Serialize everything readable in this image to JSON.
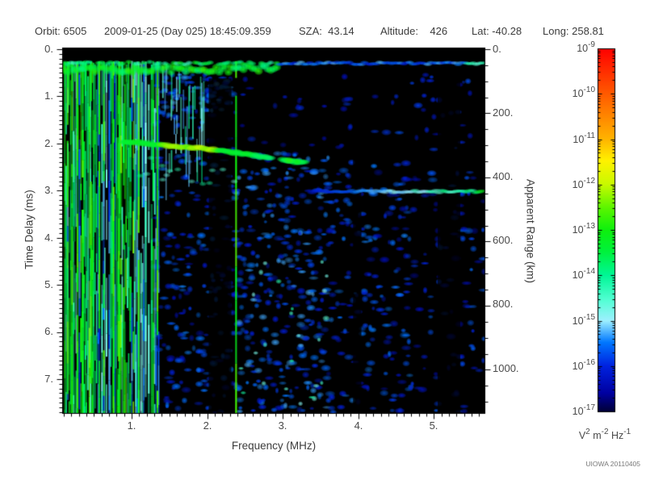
{
  "header": {
    "orbit": "Orbit: 6505",
    "datetime": "2009-01-25 (Day 025) 18:45:09.359",
    "sza": "SZA:  43.14",
    "altitude": "Altitude:    426",
    "lat": "Lat: -40.28",
    "long": "Long: 258.81"
  },
  "footer": {
    "credit": "UIOWA 20110405"
  },
  "chart_data": {
    "type": "heatmap",
    "xlabel": "Frequency (MHz)",
    "ylabel": "Time Delay (ms)",
    "y2label": "Apparent Range (km)",
    "xlim": [
      0.08,
      5.67
    ],
    "ylim": [
      0,
      7.72
    ],
    "x_tick_values": [
      1,
      2,
      3,
      4,
      5
    ],
    "x_tick_labels": [
      "1.",
      "2.",
      "3.",
      "4.",
      "5."
    ],
    "x_minor_step": 0.1,
    "y_tick_values": [
      0,
      1,
      2,
      3,
      4,
      5,
      6,
      7
    ],
    "y_tick_labels": [
      "0.",
      "1.",
      "2.",
      "3.",
      "4.",
      "5.",
      "6.",
      "7."
    ],
    "y_minor_step": 0.1,
    "y2_tick_values": [
      0,
      200,
      400,
      600,
      800,
      1000
    ],
    "y2_tick_labels": [
      "0.",
      "200.",
      "400.",
      "600.",
      "800.",
      "1000."
    ],
    "y2_minor_step": 50,
    "y2_km_per_ms": 147,
    "colorbar": {
      "scale": "log",
      "ticks": [
        {
          "base": "10",
          "exp": "-9"
        },
        {
          "base": "10",
          "exp": "-10"
        },
        {
          "base": "10",
          "exp": "-11"
        },
        {
          "base": "10",
          "exp": "-12"
        },
        {
          "base": "10",
          "exp": "-13"
        },
        {
          "base": "10",
          "exp": "-14"
        },
        {
          "base": "10",
          "exp": "-15"
        },
        {
          "base": "10",
          "exp": "-16"
        },
        {
          "base": "10",
          "exp": "-17"
        }
      ],
      "unit": {
        "p1": "V",
        "e1": "2",
        "p2": " m",
        "e2": "-2",
        "p3": " Hz",
        "e3": "-1"
      },
      "gradient_stops": [
        [
          "#000038",
          0
        ],
        [
          "#0000a0",
          0.05
        ],
        [
          "#0022e0",
          0.125
        ],
        [
          "#0077ff",
          0.19
        ],
        [
          "#9ef0ff",
          0.25
        ],
        [
          "#55ffd5",
          0.305
        ],
        [
          "#00f796",
          0.375
        ],
        [
          "#00f23c",
          0.44
        ],
        [
          "#0ef00e",
          0.5
        ],
        [
          "#5af500",
          0.56
        ],
        [
          "#c8fa00",
          0.625
        ],
        [
          "#fff200",
          0.69
        ],
        [
          "#ffb400",
          0.75
        ],
        [
          "#ff5a00",
          0.875
        ],
        [
          "#ff0000",
          1
        ]
      ]
    },
    "features": {
      "seed": 20110405,
      "top_band": {
        "t_center": 0.38,
        "bright_f_end": 2.95,
        "t_thin": 0.3
      },
      "plasma_stripes": {
        "f_start": 0.1,
        "f_end": 1.35
      },
      "bright_stripes_f": [
        0.14,
        0.2,
        0.27,
        0.34,
        0.45,
        0.56,
        0.62,
        0.75,
        0.82,
        1.08,
        1.33,
        2.37
      ],
      "ionosphere_trace": {
        "points": [
          [
            0.9,
            1.95
          ],
          [
            1.2,
            2.0
          ],
          [
            1.5,
            2.05
          ],
          [
            1.9,
            2.1
          ],
          [
            2.2,
            2.16
          ],
          [
            2.5,
            2.22
          ],
          [
            2.8,
            2.3
          ],
          [
            3.05,
            2.36
          ],
          [
            3.3,
            2.42
          ]
        ],
        "gap_f": [
          2.86,
          3.0
        ],
        "peak_f": [
          1.4,
          2.15
        ]
      },
      "surface_echo": {
        "t": 3.02,
        "f_start": 3.35,
        "f_end": 5.67
      },
      "noise_regions": [
        {
          "f": [
            1.3,
            2.35
          ],
          "t": [
            0.6,
            7.72
          ],
          "count": 250,
          "tv": [
            0.08,
            0.2
          ]
        },
        {
          "f": [
            2.35,
            3.6
          ],
          "t": [
            2.2,
            7.72
          ],
          "count": 330,
          "tv": [
            0.1,
            0.22
          ]
        },
        {
          "f": [
            3.6,
            4.7
          ],
          "t": [
            2.4,
            7.72
          ],
          "count": 190,
          "tv": [
            0.08,
            0.2
          ]
        },
        {
          "f": [
            4.7,
            5.67
          ],
          "t": [
            2.6,
            7.72
          ],
          "count": 95,
          "tv": [
            0.07,
            0.18
          ]
        },
        {
          "f": [
            2.35,
            5.6
          ],
          "t": [
            0.5,
            2.2
          ],
          "count": 60,
          "tv": [
            0.07,
            0.16
          ]
        },
        {
          "f": [
            1.35,
            2.3
          ],
          "t": [
            0.35,
            1.4
          ],
          "count": 70,
          "tv": [
            0.1,
            0.22
          ]
        }
      ],
      "cyan_accents": {
        "f": [
          2.4,
          3.6
        ],
        "t": [
          4.5,
          7.6
        ],
        "count": 24,
        "tv": [
          0.26,
          0.36
        ]
      },
      "streak_texture": {
        "f": [
          1.36,
          1.95
        ],
        "t": [
          0.3,
          2.4
        ],
        "count": 38
      },
      "dark_columns_f": [
        [
          2.02,
          2.32
        ],
        [
          5.05,
          5.35
        ],
        [
          3.93,
          4.04
        ]
      ]
    }
  }
}
